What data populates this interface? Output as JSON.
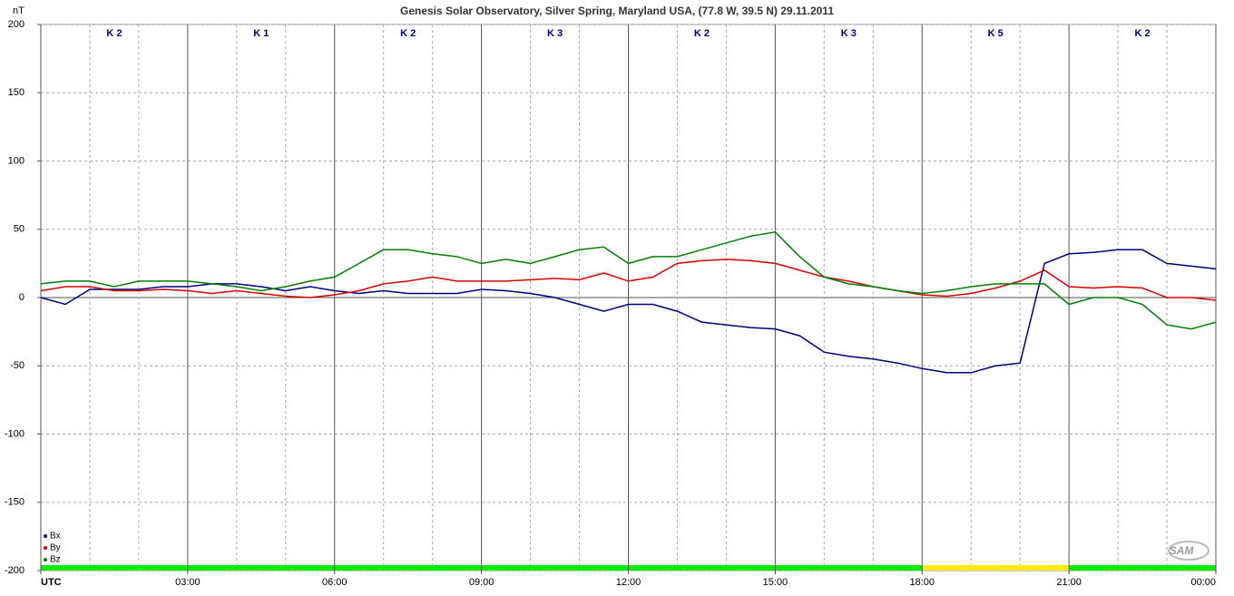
{
  "chart_data": {
    "type": "line",
    "title": "Genesis Solar Observatory, Silver Spring, Maryland USA, (77.8 W, 39.5 N)  29.11.2011",
    "y_label": "nT",
    "x": [
      0,
      0.5,
      1,
      1.5,
      2,
      2.5,
      3,
      3.5,
      4,
      4.5,
      5,
      5.5,
      6,
      6.5,
      7,
      7.5,
      8,
      8.5,
      9,
      9.5,
      10,
      10.5,
      11,
      11.5,
      12,
      12.5,
      13,
      13.5,
      14,
      14.5,
      15,
      15.5,
      16,
      16.5,
      17,
      17.5,
      18,
      18.5,
      19,
      19.5,
      20,
      20.5,
      21,
      21.5,
      22,
      22.5,
      23,
      23.5,
      24
    ],
    "series": [
      {
        "name": "Bx",
        "color": "#000080",
        "values": [
          0,
          -5,
          6,
          6,
          6,
          8,
          8,
          10,
          10,
          8,
          5,
          8,
          5,
          3,
          5,
          3,
          3,
          3,
          6,
          5,
          3,
          0,
          -5,
          -10,
          -5,
          -5,
          -10,
          -18,
          -20,
          -22,
          -23,
          -28,
          -40,
          -43,
          -45,
          -48,
          -52,
          -55,
          -55,
          -50,
          -48,
          25,
          32,
          33,
          35,
          35,
          25,
          23,
          21
        ]
      },
      {
        "name": "By",
        "color": "#dd0000",
        "values": [
          5,
          8,
          8,
          5,
          5,
          6,
          5,
          3,
          5,
          3,
          1,
          0,
          2,
          5,
          10,
          12,
          15,
          12,
          12,
          12,
          13,
          14,
          13,
          18,
          12,
          15,
          25,
          27,
          28,
          27,
          25,
          20,
          15,
          12,
          8,
          5,
          2,
          1,
          3,
          7,
          12,
          20,
          8,
          7,
          8,
          7,
          0,
          0,
          -2
        ]
      },
      {
        "name": "Bz",
        "color": "#008000",
        "values": [
          10,
          12,
          12,
          8,
          12,
          12,
          12,
          10,
          8,
          5,
          8,
          12,
          15,
          25,
          35,
          35,
          32,
          30,
          25,
          28,
          25,
          30,
          35,
          37,
          25,
          30,
          30,
          35,
          40,
          45,
          48,
          30,
          15,
          10,
          8,
          5,
          3,
          5,
          8,
          10,
          10,
          10,
          -5,
          0,
          0,
          -5,
          -20,
          -23,
          -18
        ]
      }
    ],
    "xlim": [
      0,
      24
    ],
    "xticks": [
      {
        "value": 0,
        "label": "UTC"
      },
      {
        "value": 3,
        "label": "03:00"
      },
      {
        "value": 6,
        "label": "06:00"
      },
      {
        "value": 9,
        "label": "09:00"
      },
      {
        "value": 12,
        "label": "12:00"
      },
      {
        "value": 15,
        "label": "15:00"
      },
      {
        "value": 18,
        "label": "18:00"
      },
      {
        "value": 21,
        "label": "21:00"
      },
      {
        "value": 24,
        "label": "00:00"
      }
    ],
    "xminorticks": [
      1,
      2,
      4,
      5,
      7,
      8,
      10,
      11,
      13,
      14,
      16,
      17,
      19,
      20,
      22,
      23
    ],
    "ylim": [
      -200,
      200
    ],
    "yticks": [
      -200,
      -150,
      -100,
      -50,
      0,
      50,
      100,
      150,
      200
    ],
    "grid": true,
    "k_bands": [
      {
        "label": "K 2",
        "color": "#00ee00"
      },
      {
        "label": "K 1",
        "color": "#00ee00"
      },
      {
        "label": "K 2",
        "color": "#00ee00"
      },
      {
        "label": "K 3",
        "color": "#00ee00"
      },
      {
        "label": "K 2",
        "color": "#00ee00"
      },
      {
        "label": "K 3",
        "color": "#00ee00"
      },
      {
        "label": "K 5",
        "color": "#ffee00"
      },
      {
        "label": "K 2",
        "color": "#00ee00"
      }
    ],
    "legend": "lower left",
    "logo": "SAM"
  }
}
